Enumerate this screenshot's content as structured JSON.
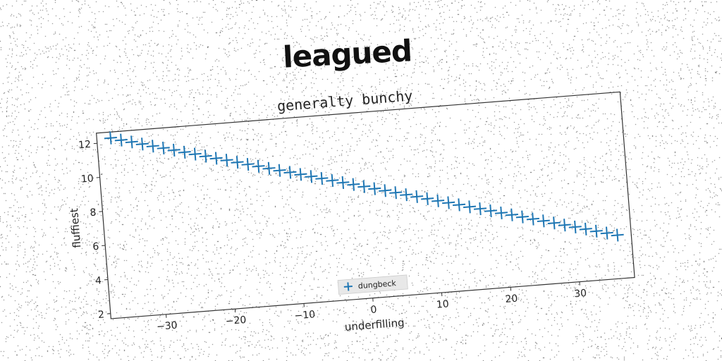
{
  "headline": "leagued",
  "chart_data": {
    "type": "scatter",
    "title": "generalty bunchy",
    "xlabel": "underfilling",
    "ylabel": "fluffiest",
    "xlim": [
      -38,
      38
    ],
    "ylim": [
      1.7,
      12.6
    ],
    "xticks": [
      -30,
      -20,
      -10,
      0,
      10,
      20,
      30
    ],
    "yticks": [
      2,
      4,
      6,
      8,
      10,
      12
    ],
    "marker": "+",
    "grid": false,
    "legend_position": "lower-center",
    "series": [
      {
        "name": "dungbeck",
        "color": "#1f77b4",
        "x": [
          -36.0,
          -34.5,
          -33.0,
          -31.5,
          -30.0,
          -28.5,
          -27.0,
          -25.5,
          -24.0,
          -22.5,
          -21.0,
          -19.5,
          -18.0,
          -16.5,
          -15.0,
          -13.5,
          -12.0,
          -10.5,
          -9.0,
          -7.5,
          -6.0,
          -4.5,
          -3.0,
          -1.5,
          0.0,
          1.5,
          3.0,
          4.5,
          6.0,
          7.5,
          9.0,
          10.5,
          12.0,
          13.5,
          15.0,
          16.5,
          18.0,
          19.5,
          21.0,
          22.5,
          24.0,
          25.5,
          27.0,
          28.5,
          30.0,
          31.5,
          33.0,
          34.5,
          36.0
        ],
        "y": [
          12.25,
          12.08,
          11.92,
          11.75,
          11.58,
          11.42,
          11.25,
          11.08,
          10.92,
          10.75,
          10.58,
          10.42,
          10.25,
          10.08,
          9.92,
          9.75,
          9.58,
          9.42,
          9.25,
          9.08,
          8.92,
          8.75,
          8.58,
          8.42,
          8.25,
          8.08,
          7.92,
          7.75,
          7.58,
          7.42,
          7.25,
          7.08,
          6.92,
          6.75,
          6.58,
          6.42,
          6.25,
          6.08,
          5.92,
          5.75,
          5.58,
          5.42,
          5.25,
          5.08,
          4.92,
          4.75,
          4.58,
          4.42,
          4.25
        ]
      }
    ]
  }
}
